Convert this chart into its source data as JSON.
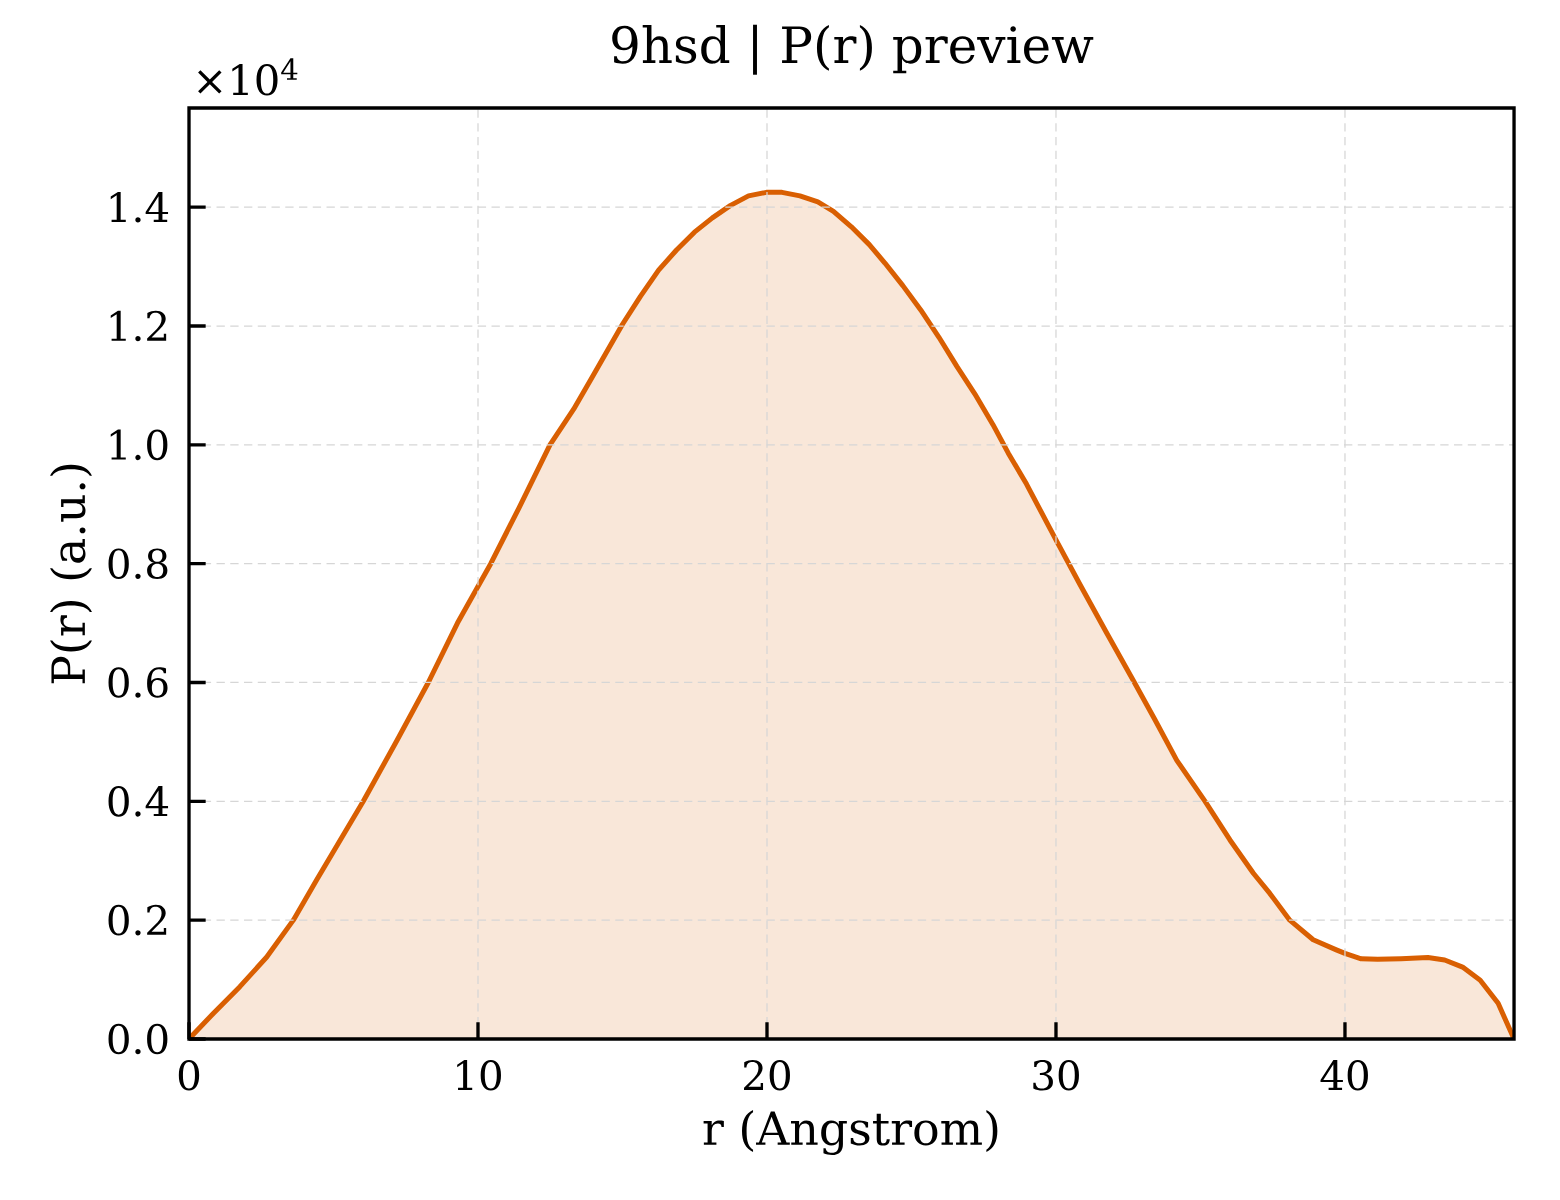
{
  "chart_data": {
    "type": "area",
    "title": "9hsd | P(r) preview",
    "xlabel": "r (Angstrom)",
    "ylabel": "P(r) (a.u.)",
    "annotations": [
      "×10$^{4}$"
    ],
    "x": [
      0,
      0.84,
      1.76,
      2.69,
      3.61,
      4.42,
      6.03,
      7.19,
      8.28,
      9.29,
      10.44,
      11.42,
      12.49,
      13.31,
      13.93,
      14.47,
      15.0,
      15.62,
      16.25,
      16.87,
      17.49,
      18.11,
      18.74,
      19.36,
      19.98,
      20.52,
      21.14,
      21.76,
      22.3,
      22.92,
      23.54,
      24.08,
      24.7,
      25.32,
      25.95,
      26.57,
      27.19,
      27.82,
      28.35,
      28.98,
      30.0,
      30.83,
      31.76,
      32.69,
      33.43,
      34.18,
      35.16,
      36.02,
      36.83,
      37.4,
      38.09,
      38.9,
      39.7,
      40.0,
      40.56,
      41.13,
      41.94,
      42.87,
      43.45,
      44.07,
      44.68,
      45.3,
      45.85
    ],
    "values": [
      0,
      0.043,
      0.088,
      0.138,
      0.2,
      0.268,
      0.4,
      0.502,
      0.6,
      0.7,
      0.8,
      0.894,
      1.0,
      1.06,
      1.112,
      1.158,
      1.203,
      1.25,
      1.294,
      1.328,
      1.358,
      1.382,
      1.403,
      1.419,
      1.425,
      1.425,
      1.419,
      1.409,
      1.393,
      1.367,
      1.337,
      1.306,
      1.268,
      1.227,
      1.181,
      1.132,
      1.086,
      1.034,
      0.986,
      0.934,
      0.84,
      0.765,
      0.683,
      0.602,
      0.537,
      0.469,
      0.4,
      0.335,
      0.279,
      0.245,
      0.2,
      0.167,
      0.15,
      0.144,
      0.135,
      0.134,
      0.135,
      0.137,
      0.133,
      0.121,
      0.099,
      0.06,
      0
    ],
    "color": "#d95f02",
    "xlim": [
      0,
      45.85
    ],
    "ylim": [
      0,
      1.567
    ],
    "xticks": [
      0,
      10,
      20,
      30,
      40
    ],
    "yticks": [
      {
        "value": 0,
        "label": "0.0"
      },
      0.2,
      0.4,
      0.6,
      0.8,
      {
        "value": 1,
        "label": "1.0"
      },
      1.2,
      1.4
    ],
    "grid": true
  }
}
